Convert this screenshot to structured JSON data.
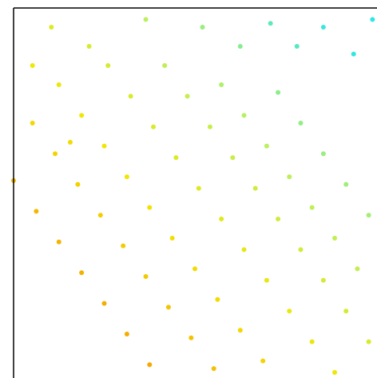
{
  "chart_data": {
    "type": "scatter",
    "x": [
      0.0,
      0.06,
      0.12,
      0.18,
      0.24,
      0.3,
      0.36,
      0.05,
      0.11,
      0.17,
      0.23,
      0.29,
      0.35,
      0.41,
      0.47,
      0.53,
      0.12,
      0.18,
      0.24,
      0.3,
      0.36,
      0.42,
      0.48,
      0.54,
      0.6,
      0.66,
      0.25,
      0.31,
      0.37,
      0.43,
      0.49,
      0.55,
      0.61,
      0.67,
      0.73,
      0.79,
      0.85,
      0.4,
      0.46,
      0.52,
      0.58,
      0.64,
      0.7,
      0.76,
      0.82,
      0.88,
      0.94,
      0.55,
      0.61,
      0.67,
      0.73,
      0.79,
      0.85,
      0.91,
      0.97,
      0.7,
      0.76,
      0.82,
      0.88,
      0.94,
      0.1,
      0.2,
      0.35,
      0.5,
      0.6,
      0.68,
      0.75,
      0.82,
      0.9,
      0.95,
      0.05,
      0.15
    ],
    "y": [
      0.55,
      0.47,
      0.39,
      0.31,
      0.23,
      0.15,
      0.07,
      0.7,
      0.62,
      0.54,
      0.46,
      0.38,
      0.3,
      0.22,
      0.14,
      0.06,
      0.8,
      0.72,
      0.64,
      0.56,
      0.48,
      0.4,
      0.32,
      0.24,
      0.16,
      0.08,
      0.85,
      0.77,
      0.69,
      0.61,
      0.53,
      0.45,
      0.37,
      0.29,
      0.21,
      0.13,
      0.05,
      0.85,
      0.77,
      0.69,
      0.61,
      0.53,
      0.45,
      0.37,
      0.29,
      0.21,
      0.13,
      0.8,
      0.72,
      0.64,
      0.56,
      0.48,
      0.4,
      0.32,
      0.24,
      0.78,
      0.7,
      0.62,
      0.54,
      0.46,
      0.95,
      0.9,
      0.97,
      0.95,
      0.9,
      0.96,
      0.9,
      0.95,
      0.88,
      0.97,
      0.85,
      0.65
    ],
    "c": [
      0.28,
      0.27,
      0.26,
      0.25,
      0.24,
      0.23,
      0.22,
      0.38,
      0.37,
      0.36,
      0.35,
      0.34,
      0.33,
      0.32,
      0.31,
      0.3,
      0.46,
      0.45,
      0.44,
      0.43,
      0.42,
      0.41,
      0.4,
      0.39,
      0.38,
      0.37,
      0.55,
      0.54,
      0.53,
      0.52,
      0.51,
      0.5,
      0.49,
      0.48,
      0.47,
      0.46,
      0.45,
      0.63,
      0.62,
      0.61,
      0.6,
      0.59,
      0.58,
      0.57,
      0.56,
      0.55,
      0.54,
      0.68,
      0.67,
      0.66,
      0.65,
      0.64,
      0.63,
      0.62,
      0.61,
      0.74,
      0.73,
      0.72,
      0.71,
      0.7,
      0.52,
      0.55,
      0.66,
      0.72,
      0.75,
      0.82,
      0.83,
      0.88,
      0.89,
      0.96,
      0.45,
      0.4
    ],
    "colormap": [
      "#f5a300",
      "#f2e600",
      "#b8f060",
      "#2ee6e6"
    ],
    "clim": [
      0.2,
      0.9
    ],
    "xlim": [
      0,
      1
    ],
    "ylim": [
      0,
      1
    ]
  }
}
